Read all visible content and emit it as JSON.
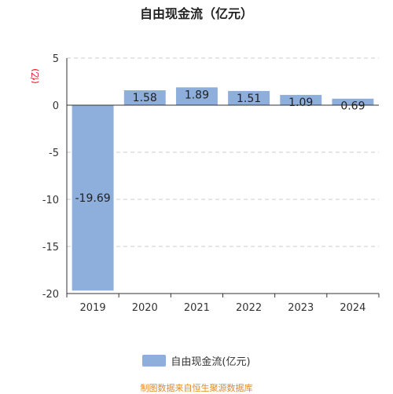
{
  "colors": {
    "bar": "#8eaedc",
    "unit": "#e60012",
    "source": "#e08b2a"
  },
  "source_note": "制图数据来自恒生聚源数据库",
  "chart_data": {
    "type": "bar",
    "title": "自由现金流（亿元）",
    "ylabel": "亿",
    "categories": [
      "2019",
      "2020",
      "2021",
      "2022",
      "2023",
      "2024"
    ],
    "series": [
      {
        "name": "自由现金流(亿元)",
        "values": [
          -19.69,
          1.58,
          1.89,
          1.51,
          1.09,
          0.69
        ]
      }
    ],
    "data_labels": [
      "-19.69",
      "1.58",
      "1.89",
      "1.51",
      "1.09",
      "0.69"
    ],
    "ylim": [
      -20,
      5
    ],
    "yticks": [
      5,
      0,
      -5,
      -10,
      -15,
      -20
    ],
    "grid": true,
    "legend": "bottom"
  }
}
